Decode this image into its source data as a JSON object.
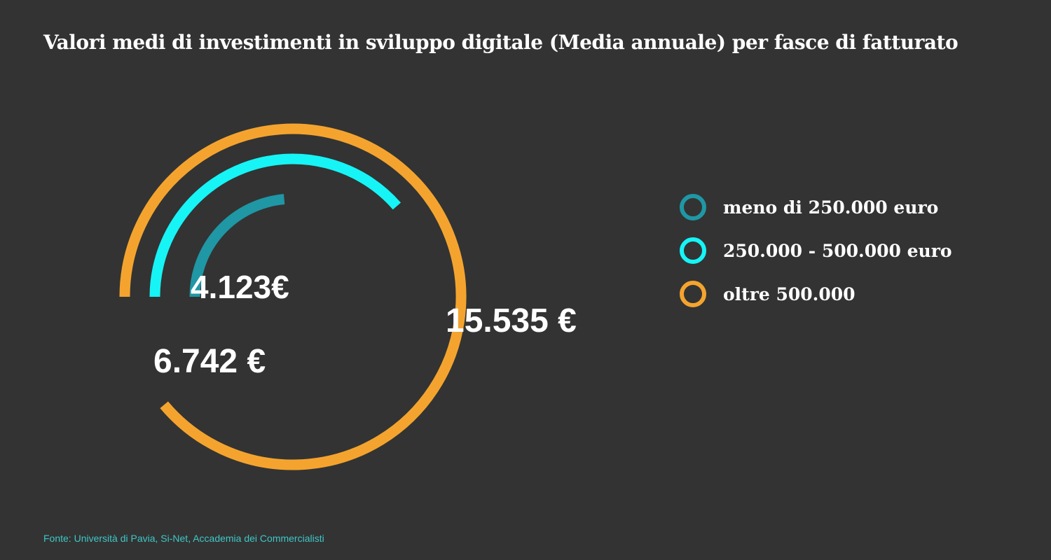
{
  "title": "Valori medi di investimenti in sviluppo digitale (Media annuale) per fasce di fatturato",
  "source": "Fonte: Università di Pavia, Si-Net, Accademia dei Commercialisti",
  "chart_data": {
    "type": "radial-bar",
    "title": "Valori medi di investimenti in sviluppo digitale (Media annuale) per fasce di fatturato",
    "categories": [
      "meno di 250.000 euro",
      "250.000 - 500.000 euro",
      "oltre 500.000"
    ],
    "values": [
      4123,
      6742,
      15535
    ],
    "value_labels": [
      "4.123€",
      "6.742 €",
      "15.535 €"
    ],
    "colors": [
      "#1f97a5",
      "#16f4f6",
      "#f4a42e"
    ],
    "legend_position": "right",
    "grid": false
  }
}
